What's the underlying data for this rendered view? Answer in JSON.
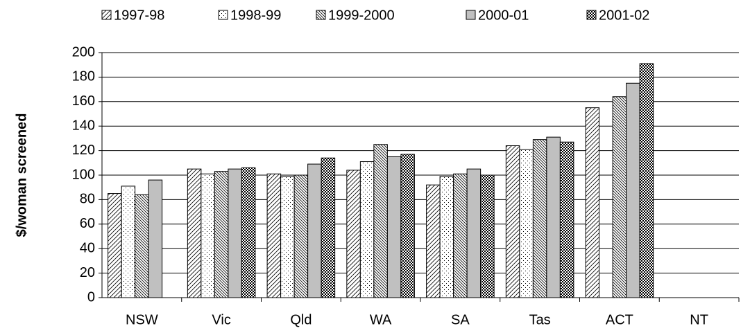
{
  "chart_data": {
    "type": "bar",
    "y_label": "$/woman screened",
    "categories": [
      "NSW",
      "Vic",
      "Qld",
      "WA",
      "SA",
      "Tas",
      "ACT",
      "NT"
    ],
    "series": [
      {
        "name": "1997-98",
        "color": "#000000",
        "pattern": "diagonal",
        "values": [
          85,
          105,
          101,
          104,
          92,
          124,
          155,
          null
        ]
      },
      {
        "name": "1998-99",
        "color": "#000000",
        "pattern": "dots",
        "values": [
          91,
          101,
          99,
          111,
          99,
          121,
          null,
          null
        ]
      },
      {
        "name": "1999-2000",
        "color": "#000000",
        "pattern": "back-diagonal",
        "values": [
          84,
          103,
          100,
          125,
          101,
          129,
          164,
          null
        ]
      },
      {
        "name": "2000-01",
        "color": "#c0c0c0",
        "pattern": "solid",
        "values": [
          96,
          105,
          109,
          115,
          105,
          131,
          175,
          null
        ]
      },
      {
        "name": "2001-02",
        "color": "#000000",
        "pattern": "checker",
        "values": [
          null,
          106,
          114,
          117,
          100,
          127,
          191,
          null
        ]
      }
    ],
    "ylim": [
      0,
      200
    ],
    "yticks": [
      0,
      20,
      40,
      60,
      80,
      100,
      120,
      140,
      160,
      180,
      200
    ],
    "grid": true,
    "legend": "top"
  }
}
